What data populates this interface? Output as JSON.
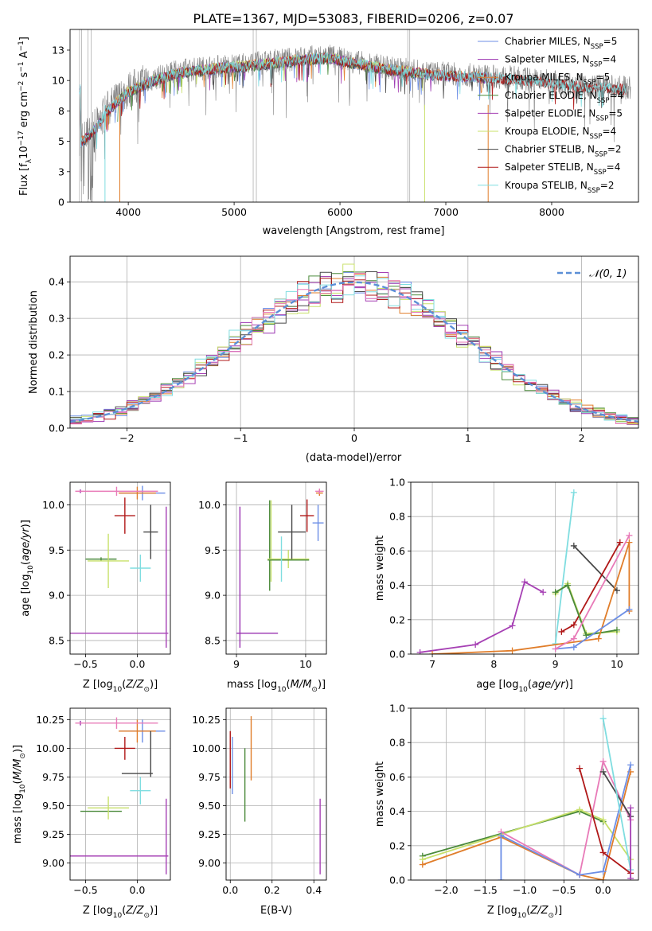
{
  "figure_title": "PLATE=1367, MJD=53083, FIBERID=0206, z=0.07",
  "colors": {
    "chabrier_miles": "#6c8ee6",
    "salpeter_miles": "#9932b0",
    "kroupa_miles": "#e07d2a",
    "chabrier_elodie": "#4a8a3a",
    "salpeter_elodie": "#a640b4",
    "kroupa_elodie": "#c8e06a",
    "chabrier_stelib": "#474747",
    "salpeter_stelib": "#b01818",
    "kroupa_stelib": "#7fdde0",
    "data": "#808080",
    "pink": "#e87ab8",
    "gaussian": "#5b8fd6"
  },
  "chart_data": [
    {
      "id": "spectrum",
      "type": "line",
      "title": "PLATE=1367, MJD=53083, FIBERID=0206, z=0.07",
      "xlabel": "wavelength [Angstrom, rest frame]",
      "ylabel": "Flux [f_λ10^-17 erg cm^-2 s^-1 A^-1]",
      "xlim": [
        3450,
        8820
      ],
      "ylim": [
        0,
        14.2
      ],
      "xticks": [
        4000,
        5000,
        6000,
        7000,
        8000
      ],
      "yticks": [
        0.0,
        2.5,
        5.0,
        7.5,
        10.0,
        12.5
      ],
      "legend_position": "top-right",
      "legend": [
        "Chabrier MILES, N_SSP=5",
        "Salpeter MILES, N_SSP=4",
        "Kroupa MILES, N_SSP=5",
        "Chabrier ELODIE, N_SSP=4",
        "Salpeter ELODIE, N_SSP=5",
        "Kroupa ELODIE, N_SSP=4",
        "Chabrier STELIB, N_SSP=2",
        "Salpeter STELIB, N_SSP=4",
        "Kroupa STELIB, N_SSP=2"
      ],
      "continuum": [
        [
          3550,
          5.0
        ],
        [
          3700,
          6.2
        ],
        [
          3800,
          7.6
        ],
        [
          3900,
          8.4
        ],
        [
          4000,
          9.2
        ],
        [
          4100,
          9.6
        ],
        [
          4200,
          10.0
        ],
        [
          4300,
          10.3
        ],
        [
          4500,
          10.8
        ],
        [
          4700,
          11.0
        ],
        [
          4900,
          11.2
        ],
        [
          5100,
          11.3
        ],
        [
          5300,
          11.5
        ],
        [
          5500,
          11.7
        ],
        [
          5700,
          11.9
        ],
        [
          5900,
          12.0
        ],
        [
          6100,
          11.6
        ],
        [
          6300,
          11.3
        ],
        [
          6500,
          11.0
        ],
        [
          6700,
          10.8
        ],
        [
          6900,
          10.6
        ],
        [
          7100,
          10.5
        ],
        [
          7300,
          10.4
        ],
        [
          7500,
          10.3
        ],
        [
          7700,
          10.2
        ],
        [
          7900,
          10.0
        ],
        [
          8100,
          9.8
        ],
        [
          8300,
          9.6
        ],
        [
          8500,
          9.5
        ],
        [
          8700,
          9.4
        ]
      ]
    },
    {
      "id": "residuals",
      "type": "histogram",
      "xlabel": "(data-model)/error",
      "ylabel": "Normed distribution",
      "xlim": [
        -2.5,
        2.5
      ],
      "ylim": [
        0,
        0.47
      ],
      "xticks": [
        -2,
        -1,
        0,
        1,
        2
      ],
      "yticks": [
        0.0,
        0.1,
        0.2,
        0.3,
        0.4
      ],
      "legend": [
        "N(0,1)"
      ],
      "legend_position": "top-right",
      "bin_width": 0.1
    },
    {
      "id": "age_vs_Z",
      "type": "errorbar",
      "xlabel": "Z [log10(Z/Z_sun)]",
      "ylabel": "age  [log10(age/yr)]",
      "xlim": [
        -0.65,
        0.32
      ],
      "ylim": [
        8.35,
        10.25
      ],
      "xticks": [
        -0.5,
        0.0
      ],
      "yticks": [
        8.5,
        9.0,
        9.5,
        10.0
      ],
      "points": [
        {
          "s": "chabrier_miles",
          "x": 0.05,
          "xerr": 0.22,
          "y": 10.13,
          "yerr": 0.08
        },
        {
          "s": "salpeter_miles",
          "x": -0.55,
          "xerr": 0.0,
          "y": 10.15,
          "yerr": 0.02
        },
        {
          "s": "kroupa_miles",
          "x": 0.0,
          "xerr": 0.18,
          "y": 10.13,
          "yerr": 0.07
        },
        {
          "s": "chabrier_elodie",
          "x": -0.35,
          "xerr": 0.15,
          "y": 9.4,
          "yerr": 0.02
        },
        {
          "s": "salpeter_elodie",
          "x": -0.2,
          "xerr": 0.5,
          "y": 8.58,
          "yerr": 0.0
        },
        {
          "s": "salpeter_elodie",
          "x": 0.28,
          "xerr": 0.0,
          "y": 9.2,
          "yerr": 0.78
        },
        {
          "s": "kroupa_elodie",
          "x": -0.28,
          "xerr": 0.2,
          "y": 9.38,
          "yerr": 0.3
        },
        {
          "s": "chabrier_stelib",
          "x": 0.13,
          "xerr": 0.07,
          "y": 9.7,
          "yerr": 0.3
        },
        {
          "s": "salpeter_stelib",
          "x": -0.12,
          "xerr": 0.1,
          "y": 9.88,
          "yerr": 0.2
        },
        {
          "s": "kroupa_stelib",
          "x": 0.03,
          "xerr": 0.1,
          "y": 9.3,
          "yerr": 0.15
        },
        {
          "s": "pink",
          "x": -0.2,
          "xerr": 0.4,
          "y": 10.15,
          "yerr": 0.05
        }
      ]
    },
    {
      "id": "age_vs_mass",
      "type": "errorbar",
      "xlabel": "mass [log10(M/M_sun)]",
      "ylabel": "",
      "xlim": [
        8.85,
        10.3
      ],
      "ylim": [
        8.35,
        10.25
      ],
      "xticks": [
        9,
        10
      ],
      "yticks": [
        8.5,
        9.0,
        9.5,
        10.0
      ],
      "points": [
        {
          "s": "chabrier_miles",
          "x": 10.18,
          "xerr": 0.08,
          "y": 9.8,
          "yerr": 0.2
        },
        {
          "s": "salpeter_miles",
          "x": 9.3,
          "xerr": 0.3,
          "y": 8.58,
          "yerr": 0.0
        },
        {
          "s": "salpeter_miles",
          "x": 9.05,
          "xerr": 0.0,
          "y": 9.2,
          "yerr": 0.78
        },
        {
          "s": "kroupa_miles",
          "x": 10.2,
          "xerr": 0.05,
          "y": 10.13,
          "yerr": 0.03
        },
        {
          "s": "chabrier_elodie",
          "x": 9.48,
          "xerr": 0.0,
          "y": 9.55,
          "yerr": 0.5
        },
        {
          "s": "kroupa_elodie",
          "x": 9.75,
          "xerr": 0.3,
          "y": 9.4,
          "yerr": 0.1
        },
        {
          "s": "kroupa_elodie",
          "x": 9.5,
          "xerr": 0.0,
          "y": 9.6,
          "yerr": 0.45
        },
        {
          "s": "chabrier_elodie",
          "x": 9.75,
          "xerr": 0.3,
          "y": 9.39,
          "yerr": 0.0
        },
        {
          "s": "chabrier_stelib",
          "x": 9.8,
          "xerr": 0.2,
          "y": 9.7,
          "yerr": 0.3
        },
        {
          "s": "salpeter_stelib",
          "x": 10.02,
          "xerr": 0.1,
          "y": 9.88,
          "yerr": 0.18
        },
        {
          "s": "kroupa_stelib",
          "x": 9.65,
          "xerr": 0.0,
          "y": 9.4,
          "yerr": 0.25
        },
        {
          "s": "pink",
          "x": 10.2,
          "xerr": 0.06,
          "y": 10.15,
          "yerr": 0.03
        }
      ]
    },
    {
      "id": "massweight_vs_age",
      "type": "line",
      "xlabel": "age  [log10(age/yr)]",
      "ylabel": "mass weight",
      "xlim": [
        6.65,
        10.35
      ],
      "ylim": [
        0,
        1.0
      ],
      "xticks": [
        7,
        8,
        9,
        10
      ],
      "yticks": [
        0.0,
        0.2,
        0.4,
        0.6,
        0.8,
        1.0
      ],
      "series": [
        {
          "s": "salpeter_elodie",
          "x": [
            6.8,
            7.7,
            8.3,
            8.5,
            8.8
          ],
          "y": [
            0.01,
            0.055,
            0.165,
            0.42,
            0.36
          ]
        },
        {
          "s": "kroupa_stelib",
          "x": [
            9.0,
            9.3
          ],
          "y": [
            0.06,
            0.94
          ]
        },
        {
          "s": "chabrier_stelib",
          "x": [
            9.3,
            10.0
          ],
          "y": [
            0.63,
            0.37
          ]
        },
        {
          "s": "salpeter_stelib",
          "x": [
            9.1,
            9.3,
            10.05
          ],
          "y": [
            0.13,
            0.17,
            0.65
          ]
        },
        {
          "s": "kroupa_elodie",
          "x": [
            9.0,
            9.2,
            9.5,
            10.0
          ],
          "y": [
            0.35,
            0.41,
            0.12,
            0.13
          ]
        },
        {
          "s": "chabrier_elodie",
          "x": [
            9.0,
            9.2,
            9.5,
            10.0
          ],
          "y": [
            0.36,
            0.4,
            0.11,
            0.14
          ]
        },
        {
          "s": "kroupa_miles",
          "x": [
            7.0,
            8.3,
            9.7,
            10.2,
            10.2
          ],
          "y": [
            0.0,
            0.02,
            0.09,
            0.65,
            0.25
          ]
        },
        {
          "s": "chabrier_miles",
          "x": [
            9.0,
            9.3,
            10.2
          ],
          "y": [
            0.03,
            0.04,
            0.26
          ]
        },
        {
          "s": "pink",
          "x": [
            9.0,
            9.3,
            10.2
          ],
          "y": [
            0.03,
            0.09,
            0.69
          ]
        }
      ]
    },
    {
      "id": "mass_vs_Z",
      "type": "errorbar",
      "xlabel": "Z [log10(Z/Z_sun)]",
      "ylabel": "mass [log10(M/M_sun)]",
      "xlim": [
        -0.65,
        0.32
      ],
      "ylim": [
        8.85,
        10.35
      ],
      "xticks": [
        -0.5,
        0.0
      ],
      "yticks": [
        9.0,
        9.25,
        9.5,
        9.75,
        10.0,
        10.25
      ],
      "points": [
        {
          "s": "chabrier_miles",
          "x": 0.05,
          "xerr": 0.22,
          "y": 10.15,
          "yerr": 0.1
        },
        {
          "s": "salpeter_miles",
          "x": -0.55,
          "xerr": 0.0,
          "y": 10.22,
          "yerr": 0.02
        },
        {
          "s": "kroupa_miles",
          "x": 0.0,
          "xerr": 0.18,
          "y": 10.15,
          "yerr": 0.1
        },
        {
          "s": "chabrier_elodie",
          "x": -0.35,
          "xerr": 0.2,
          "y": 9.45,
          "yerr": 0.0
        },
        {
          "s": "salpeter_elodie",
          "x": -0.2,
          "xerr": 0.5,
          "y": 9.06,
          "yerr": 0.0
        },
        {
          "s": "salpeter_elodie",
          "x": 0.28,
          "xerr": 0.0,
          "y": 9.23,
          "yerr": 0.33
        },
        {
          "s": "kroupa_elodie",
          "x": -0.28,
          "xerr": 0.2,
          "y": 9.48,
          "yerr": 0.1
        },
        {
          "s": "chabrier_stelib",
          "x": 0.0,
          "xerr": 0.15,
          "y": 9.78,
          "yerr": 0.0
        },
        {
          "s": "chabrier_stelib",
          "x": 0.13,
          "xerr": 0.0,
          "y": 9.95,
          "yerr": 0.2
        },
        {
          "s": "salpeter_stelib",
          "x": -0.12,
          "xerr": 0.1,
          "y": 10.0,
          "yerr": 0.1
        },
        {
          "s": "kroupa_stelib",
          "x": 0.03,
          "xerr": 0.1,
          "y": 9.63,
          "yerr": 0.12
        },
        {
          "s": "pink",
          "x": -0.2,
          "xerr": 0.4,
          "y": 10.22,
          "yerr": 0.05
        }
      ]
    },
    {
      "id": "mass_vs_EBV",
      "type": "errorbar",
      "xlabel": "E(B-V)",
      "ylabel": "",
      "xlim": [
        -0.02,
        0.46
      ],
      "ylim": [
        8.85,
        10.35
      ],
      "xticks": [
        0.0,
        0.2,
        0.4
      ],
      "yticks": [
        9.0,
        9.25,
        9.5,
        9.75,
        10.0,
        10.25
      ],
      "points": [
        {
          "s": "salpeter_stelib",
          "x": 0.0,
          "xerr": 0.0,
          "y": 9.9,
          "yerr": 0.25
        },
        {
          "s": "chabrier_miles",
          "x": 0.01,
          "xerr": 0.0,
          "y": 9.85,
          "yerr": 0.25
        },
        {
          "s": "chabrier_elodie",
          "x": 0.07,
          "xerr": 0.0,
          "y": 9.68,
          "yerr": 0.32
        },
        {
          "s": "kroupa_miles",
          "x": 0.1,
          "xerr": 0.0,
          "y": 10.0,
          "yerr": 0.28
        },
        {
          "s": "salpeter_elodie",
          "x": 0.43,
          "xerr": 0.0,
          "y": 9.23,
          "yerr": 0.33
        }
      ]
    },
    {
      "id": "massweight_vs_Z",
      "type": "line",
      "xlabel": "Z [log10(Z/Z_sun)]",
      "ylabel": "mass weight",
      "xlim": [
        -2.45,
        0.45
      ],
      "ylim": [
        0,
        1.0
      ],
      "xticks": [
        -2.0,
        -1.5,
        -1.0,
        -0.5,
        0.0
      ],
      "yticks": [
        0.0,
        0.2,
        0.4,
        0.6,
        0.8,
        1.0
      ],
      "series": [
        {
          "s": "chabrier_elodie",
          "x": [
            -2.3,
            -0.3,
            0.0
          ],
          "y": [
            0.14,
            0.4,
            0.34
          ]
        },
        {
          "s": "kroupa_elodie",
          "x": [
            -2.3,
            -0.3,
            0.0,
            0.35
          ],
          "y": [
            0.12,
            0.41,
            0.35,
            0.12
          ]
        },
        {
          "s": "kroupa_miles",
          "x": [
            -2.3,
            -1.3,
            -0.3,
            0.0,
            0.35
          ],
          "y": [
            0.09,
            0.25,
            0.03,
            0.0,
            0.63
          ]
        },
        {
          "s": "pink",
          "x": [
            -1.3,
            -0.3,
            0.0,
            0.35
          ],
          "y": [
            0.28,
            0.03,
            0.69,
            0.35
          ]
        },
        {
          "s": "chabrier_miles",
          "x": [
            -1.3,
            -1.3,
            -0.3,
            0.0,
            0.35
          ],
          "y": [
            0.0,
            0.26,
            0.03,
            0.05,
            0.67
          ]
        },
        {
          "s": "salpeter_stelib",
          "x": [
            -0.3,
            0.0,
            0.35
          ],
          "y": [
            0.65,
            0.16,
            0.04
          ]
        },
        {
          "s": "chabrier_stelib",
          "x": [
            0.0,
            0.35
          ],
          "y": [
            0.63,
            0.37
          ]
        },
        {
          "s": "kroupa_stelib",
          "x": [
            0.0,
            0.35
          ],
          "y": [
            0.94,
            0.06
          ]
        },
        {
          "s": "salpeter_elodie",
          "x": [
            0.35,
            0.35
          ],
          "y": [
            0.42,
            0.01
          ]
        }
      ]
    }
  ]
}
